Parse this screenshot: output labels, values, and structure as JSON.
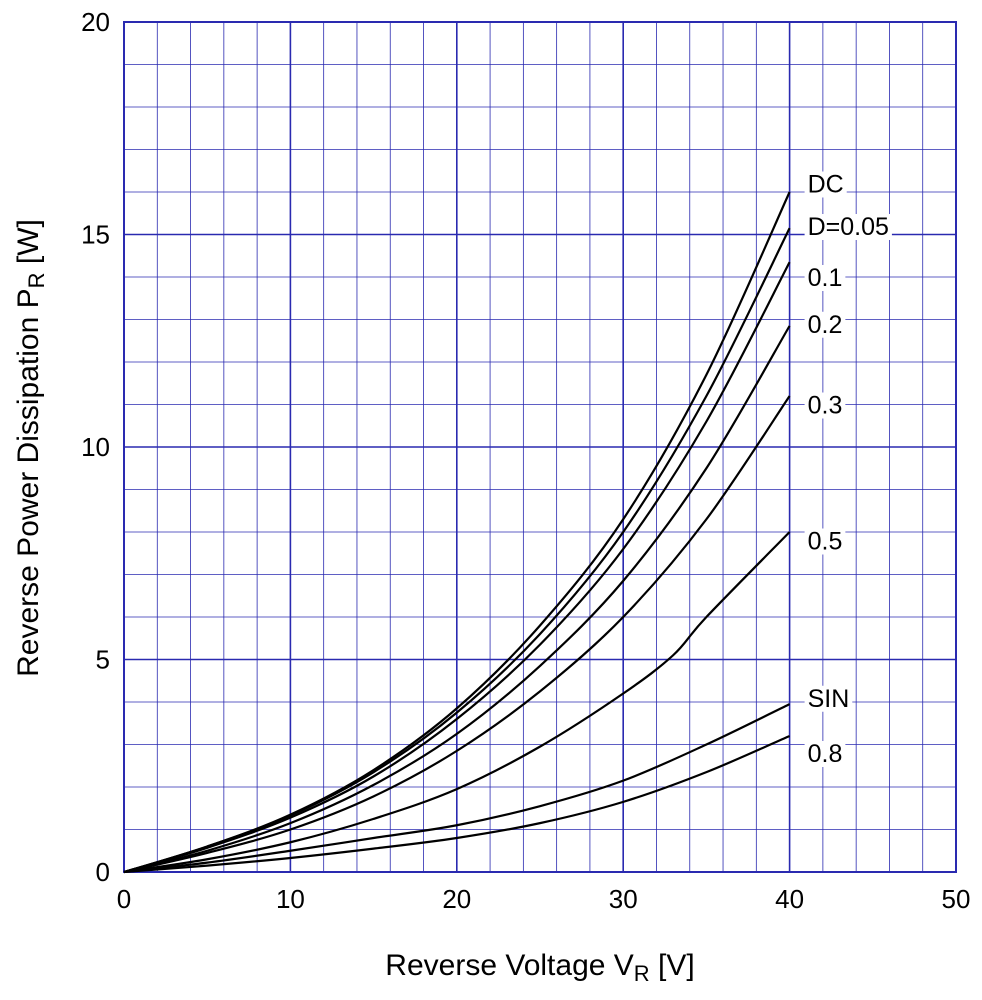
{
  "chart_data": {
    "type": "line",
    "title": "",
    "xlabel": {
      "main": "Reverse Voltage  V",
      "sub": "R",
      "unit": "  [V]"
    },
    "ylabel": {
      "main": "Reverse Power Dissipation  P",
      "sub": "R",
      "unit": "  [W]"
    },
    "xlim": [
      0,
      50
    ],
    "ylim": [
      0,
      20
    ],
    "x_ticks": [
      0,
      10,
      20,
      30,
      40,
      50
    ],
    "y_ticks": [
      0,
      5,
      10,
      15,
      20
    ],
    "x_tick_labels": [
      "0",
      "10",
      "20",
      "30",
      "40",
      "50"
    ],
    "y_tick_labels": [
      "0",
      "5",
      "10",
      "15",
      "20"
    ],
    "x_minor_step": 2,
    "y_minor_step": 1,
    "grid": true,
    "grid_color": "#2a2ab0",
    "series": [
      {
        "name": "DC",
        "x": [
          0,
          5,
          10,
          15,
          20,
          25,
          30,
          35,
          40
        ],
        "y": [
          0,
          0.6,
          1.35,
          2.4,
          3.85,
          5.8,
          8.3,
          11.7,
          16.0
        ]
      },
      {
        "name": "D=0.05",
        "x": [
          0,
          5,
          10,
          15,
          20,
          25,
          30,
          35,
          40
        ],
        "y": [
          0,
          0.6,
          1.33,
          2.35,
          3.75,
          5.6,
          8.0,
          11.2,
          15.15
        ]
      },
      {
        "name": "0.1",
        "x": [
          0,
          5,
          10,
          15,
          20,
          25,
          30,
          35,
          40
        ],
        "y": [
          0,
          0.57,
          1.28,
          2.25,
          3.6,
          5.35,
          7.6,
          10.6,
          14.35
        ]
      },
      {
        "name": "0.2",
        "x": [
          0,
          5,
          10,
          15,
          20,
          25,
          30,
          35,
          40
        ],
        "y": [
          0,
          0.5,
          1.15,
          2.05,
          3.25,
          4.85,
          6.85,
          9.5,
          12.85
        ]
      },
      {
        "name": "0.3",
        "x": [
          0,
          5,
          10,
          15,
          20,
          25,
          30,
          35,
          40
        ],
        "y": [
          0,
          0.45,
          1.0,
          1.78,
          2.85,
          4.25,
          6.0,
          8.3,
          11.2
        ]
      },
      {
        "name": "0.5",
        "x": [
          0,
          5,
          10,
          15,
          20,
          25,
          30,
          33,
          35,
          40
        ],
        "y": [
          0,
          0.3,
          0.7,
          1.25,
          1.95,
          2.95,
          4.2,
          5.1,
          6.0,
          8.0
        ]
      },
      {
        "name": "SIN",
        "x": [
          0,
          5,
          10,
          15,
          20,
          25,
          30,
          35,
          40
        ],
        "y": [
          0,
          0.22,
          0.5,
          0.8,
          1.1,
          1.55,
          2.15,
          3.0,
          3.95
        ]
      },
      {
        "name": "0.8",
        "x": [
          0,
          5,
          10,
          15,
          20,
          25,
          30,
          35,
          40
        ],
        "y": [
          0,
          0.15,
          0.33,
          0.55,
          0.8,
          1.15,
          1.65,
          2.35,
          3.2
        ]
      }
    ],
    "series_labels": [
      {
        "text": "DC",
        "y": 16.2
      },
      {
        "text": "D=0.05",
        "y": 15.2
      },
      {
        "text": "0.1",
        "y": 14.0
      },
      {
        "text": "0.2",
        "y": 12.9
      },
      {
        "text": "0.3",
        "y": 11.0
      },
      {
        "text": "0.5",
        "y": 7.8
      },
      {
        "text": "SIN",
        "y": 4.1
      },
      {
        "text": "0.8",
        "y": 2.8
      }
    ]
  }
}
